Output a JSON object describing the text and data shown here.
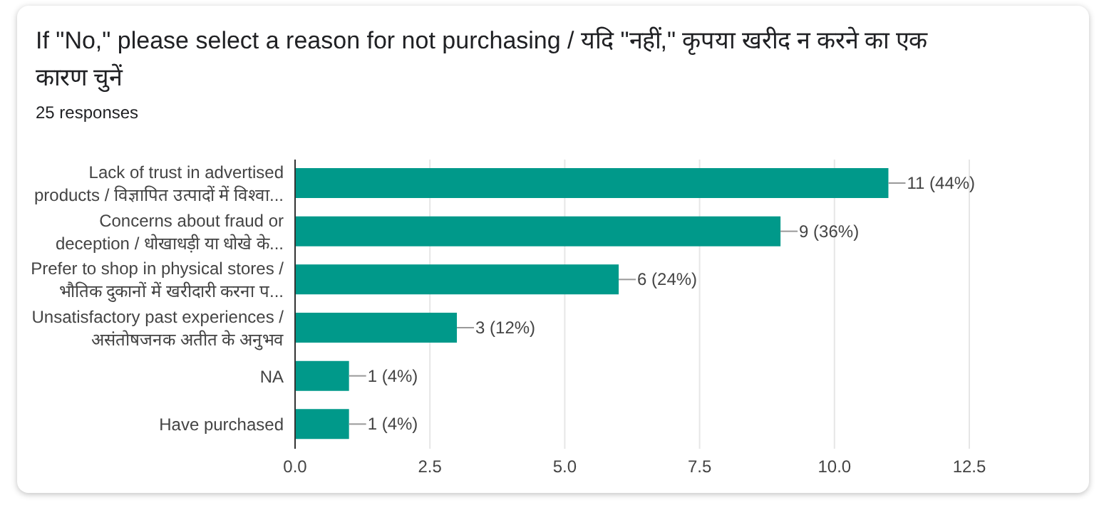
{
  "chart_data": {
    "type": "bar",
    "orientation": "horizontal",
    "title": "If \"No,\" please select a reason for not purchasing / यदि \"नहीं,\" कृपया खरीद न करने का एक कारण चुनें",
    "subtitle": "25 responses",
    "categories": [
      "Lack of trust in advertised\nproducts / विज्ञापित उत्पादों में विश्वा...",
      "Concerns about fraud or\ndeception / धोखाधड़ी या धोखे के...",
      "Prefer to shop in physical stores /\nभौतिक दुकानों में खरीदारी करना प...",
      "Unsatisfactory past experiences /\nअसंतोषजनक अतीत के अनुभव",
      "NA",
      "Have purchased"
    ],
    "values": [
      11,
      9,
      6,
      3,
      1,
      1
    ],
    "value_labels": [
      "11 (44%)",
      "9 (36%)",
      "6 (24%)",
      "3 (12%)",
      "1 (4%)",
      "1 (4%)"
    ],
    "color": "#00998a",
    "xlim": [
      0,
      12.5
    ],
    "xticks": [
      {
        "value": 0,
        "label": "0.0"
      },
      {
        "value": 2.5,
        "label": "2.5"
      },
      {
        "value": 5,
        "label": "5.0"
      },
      {
        "value": 7.5,
        "label": "7.5"
      },
      {
        "value": 10,
        "label": "10.0"
      },
      {
        "value": 12.5,
        "label": "12.5"
      }
    ],
    "grid": "x"
  }
}
